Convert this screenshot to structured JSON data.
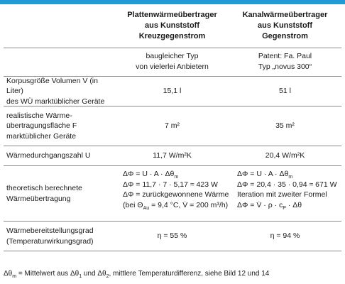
{
  "header": {
    "col1": [
      "Plattenwärmeübertrager",
      "aus Kunststoff",
      "Kreuzgegenstrom"
    ],
    "col2": [
      "Kanalwärmeübertrager",
      "aus Kunststoff",
      "Gegenstrom"
    ]
  },
  "subheader": {
    "col1": [
      "baugleicher Typ",
      "von vielerlei Anbietern"
    ],
    "col2": [
      "Patent: Fa. Paul",
      "Typ „novus 300“"
    ]
  },
  "rows": [
    {
      "label": [
        "Korpusgröße Volumen V (in Liter)",
        "des WÜ marktüblicher Geräte"
      ],
      "col1": "15,1 l",
      "col2": "51 l"
    },
    {
      "label": [
        "realistische Wärme-",
        "übertragungsfläche F",
        "marktüblicher Geräte"
      ],
      "col1": "7 m²",
      "col2": "35 m²"
    },
    {
      "label": [
        "Wärmedurchgangszahl U"
      ],
      "col1": "11,7 W/m²K",
      "col2": "20,4 W/m²K"
    }
  ],
  "theory": {
    "label": [
      "theoretisch berechnete",
      "Wärmeübertragung"
    ],
    "col1": {
      "line1_a": "ΔΦ = U · A · Δθ",
      "line1_sub": "m",
      "line2_a": "ΔΦ = 11,7 · 7 · 5,17 ≈ 423 W",
      "line3": "ΔΦ = zurückgewonnene Wärme",
      "line4_a": "(bei Θ",
      "line4_sub": "Au",
      "line4_b": " = 9,4 °C, V̇ = 200 m³/h)"
    },
    "col2": {
      "line1_a": "ΔΦ = U · A · Δθ",
      "line1_sub": "m",
      "line2": "ΔΦ = 20,4 · 35 · 0,94 ≈ 671 W",
      "line3": "Iteration mit zweiter Formel",
      "line4_a": "ΔΦ = V̇ · ρ · c",
      "line4_sub": "P",
      "line4_b": " · Δθ"
    }
  },
  "efficiency": {
    "label": [
      "Wärmebereitstellungsgrad",
      "(Temperaturwirkungsgrad)"
    ],
    "col1": "η = 55 %",
    "col2": "η = 94 %"
  },
  "footer": {
    "a": "Δθ",
    "sub_m": "m",
    "b": " = Mittelwert aus Δθ",
    "sub_1": "1",
    "c": " und Δθ",
    "sub_2": "2",
    "d": ", mittlere Temperaturdifferenz, siehe Bild 12 und 14"
  },
  "colors": {
    "accent": "#1f9ad6",
    "rule": "#8a8a8a"
  }
}
